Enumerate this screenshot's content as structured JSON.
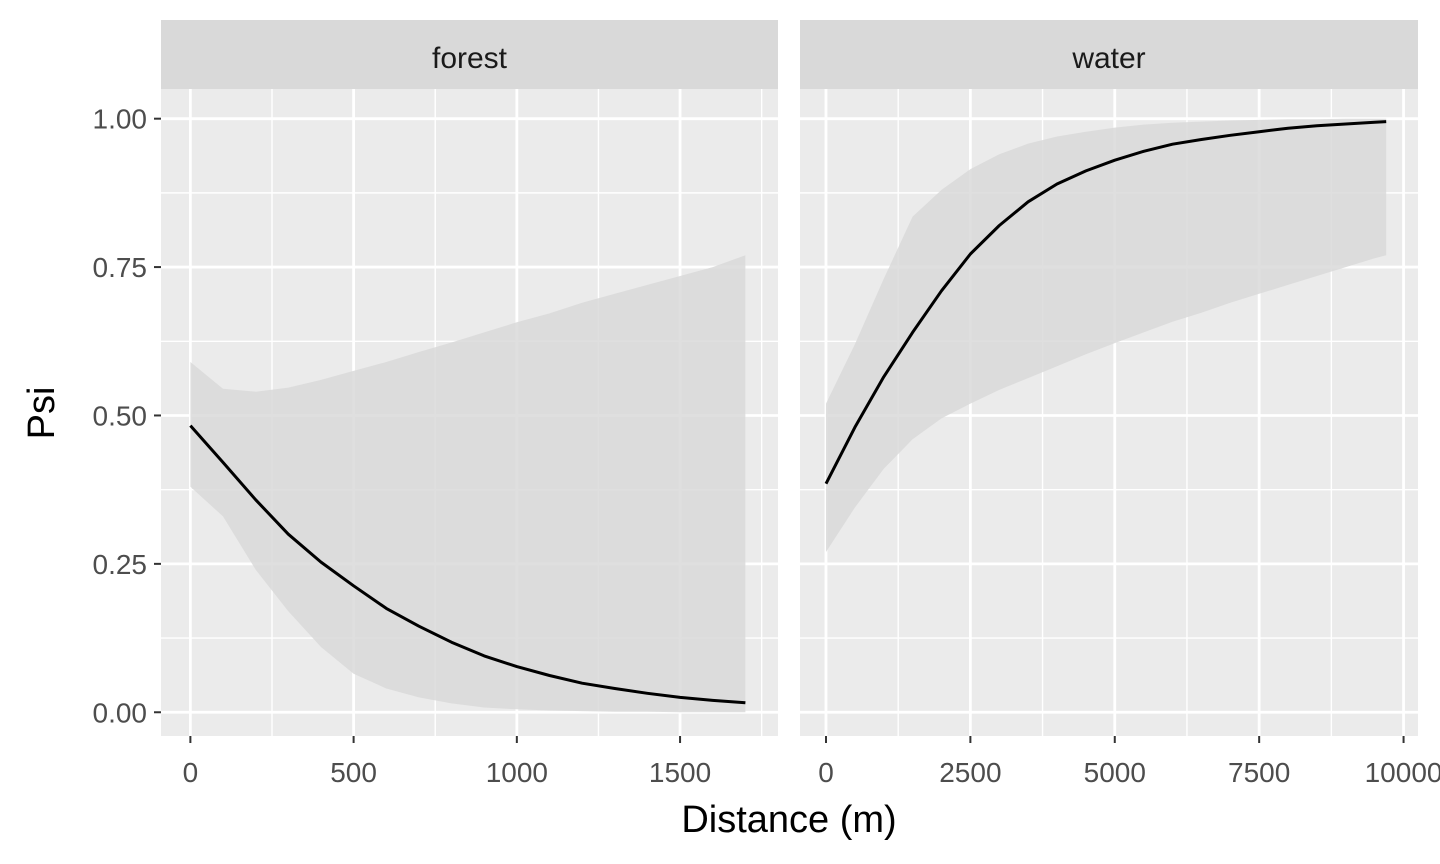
{
  "chart_data": {
    "type": "line",
    "xlabel": "Distance (m)",
    "ylabel": "Psi",
    "ylim": [
      -0.04,
      1.05
    ],
    "y_ticks": [
      0,
      0.25,
      0.5,
      0.75,
      1
    ],
    "y_tick_labels": [
      "0.00",
      "0.25",
      "0.50",
      "0.75",
      "1.00"
    ],
    "grid": true,
    "legend": "none",
    "colors": {
      "panel_bg": "#ebebeb",
      "strip_bg": "#d9d9d9",
      "grid": "#ffffff",
      "ribbon": "#d9d9d9",
      "line": "#000000"
    },
    "panels": [
      {
        "strip": "forest",
        "xlim": [
          -90,
          1800
        ],
        "x_ticks": [
          0,
          500,
          1000,
          1500
        ],
        "x_tick_labels": [
          "0",
          "500",
          "1000",
          "1500"
        ],
        "x_minor": [
          250,
          750,
          1250,
          1750
        ],
        "series": [
          {
            "x": [
              0,
              100,
              200,
              300,
              400,
              500,
              600,
              700,
              800,
              900,
              1000,
              1100,
              1200,
              1300,
              1400,
              1500,
              1600,
              1700
            ],
            "y": [
              0.483,
              0.421,
              0.358,
              0.3,
              0.253,
              0.213,
              0.175,
              0.145,
              0.118,
              0.095,
              0.077,
              0.062,
              0.049,
              0.04,
              0.032,
              0.025,
              0.02,
              0.016
            ],
            "lower": [
              0.38,
              0.33,
              0.24,
              0.17,
              0.11,
              0.065,
              0.04,
              0.025,
              0.015,
              0.008,
              0.005,
              0.003,
              0.002,
              0.001,
              0.001,
              0.0,
              0.0,
              0.0
            ],
            "upper": [
              0.59,
              0.545,
              0.54,
              0.547,
              0.56,
              0.575,
              0.59,
              0.607,
              0.623,
              0.64,
              0.657,
              0.672,
              0.69,
              0.705,
              0.72,
              0.735,
              0.75,
              0.77
            ]
          }
        ]
      },
      {
        "strip": "water",
        "xlim": [
          -450,
          10250
        ],
        "x_ticks": [
          0,
          2500,
          5000,
          7500,
          10000
        ],
        "x_tick_labels": [
          "0",
          "2500",
          "5000",
          "7500",
          "10000"
        ],
        "x_minor": [
          1250,
          3750,
          6250,
          8750
        ],
        "series": [
          {
            "x": [
              0,
              500,
              1000,
              1500,
              2000,
              2500,
              3000,
              3500,
              4000,
              4500,
              5000,
              5500,
              6000,
              6500,
              7000,
              7500,
              8000,
              8500,
              9000,
              9500,
              9700
            ],
            "y": [
              0.385,
              0.48,
              0.565,
              0.64,
              0.71,
              0.772,
              0.82,
              0.86,
              0.89,
              0.912,
              0.93,
              0.945,
              0.957,
              0.965,
              0.972,
              0.978,
              0.984,
              0.988,
              0.991,
              0.994,
              0.995
            ],
            "lower": [
              0.27,
              0.345,
              0.41,
              0.46,
              0.495,
              0.52,
              0.543,
              0.563,
              0.583,
              0.603,
              0.622,
              0.64,
              0.658,
              0.673,
              0.69,
              0.705,
              0.72,
              0.735,
              0.75,
              0.765,
              0.77
            ],
            "upper": [
              0.52,
              0.62,
              0.73,
              0.835,
              0.88,
              0.915,
              0.94,
              0.958,
              0.97,
              0.978,
              0.985,
              0.99,
              0.993,
              0.995,
              0.997,
              0.998,
              0.999,
              0.999,
              1.0,
              1.0,
              1.0
            ]
          }
        ]
      }
    ]
  }
}
